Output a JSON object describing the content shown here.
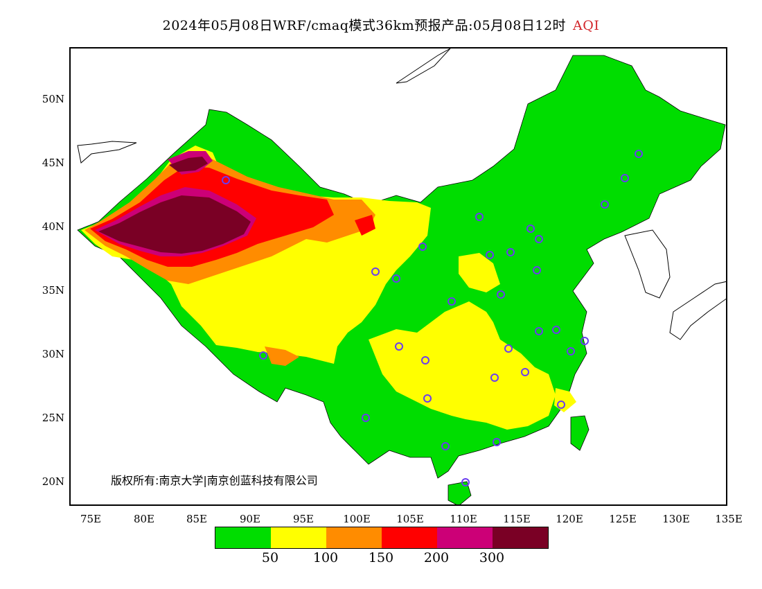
{
  "title": {
    "main": "2024年05月08日WRF/cmaq模式36km预报产品:05月08日12时",
    "variable": "AQI"
  },
  "axes": {
    "lat_ticks": [
      "50N",
      "45N",
      "40N",
      "35N",
      "30N",
      "25N",
      "20N"
    ],
    "lon_ticks": [
      "75E",
      "80E",
      "85E",
      "90E",
      "95E",
      "100E",
      "105E",
      "110E",
      "115E",
      "120E",
      "125E",
      "130E",
      "135E"
    ]
  },
  "copyright": "版权所有:南京大学|南京创蓝科技有限公司",
  "legend": {
    "colors": [
      "#00dd00",
      "#ffff00",
      "#ff8c00",
      "#ff0000",
      "#cc0077",
      "#7a0025"
    ],
    "labels": [
      "50",
      "100",
      "150",
      "200",
      "300"
    ]
  },
  "colors": {
    "good": "#00dd00",
    "moderate": "#ffff00",
    "sensitive": "#ff8c00",
    "unhealthy": "#ff0000",
    "very_unhealthy": "#cc0077",
    "hazardous": "#7a0025",
    "station_ring": "#6a3cf0"
  }
}
